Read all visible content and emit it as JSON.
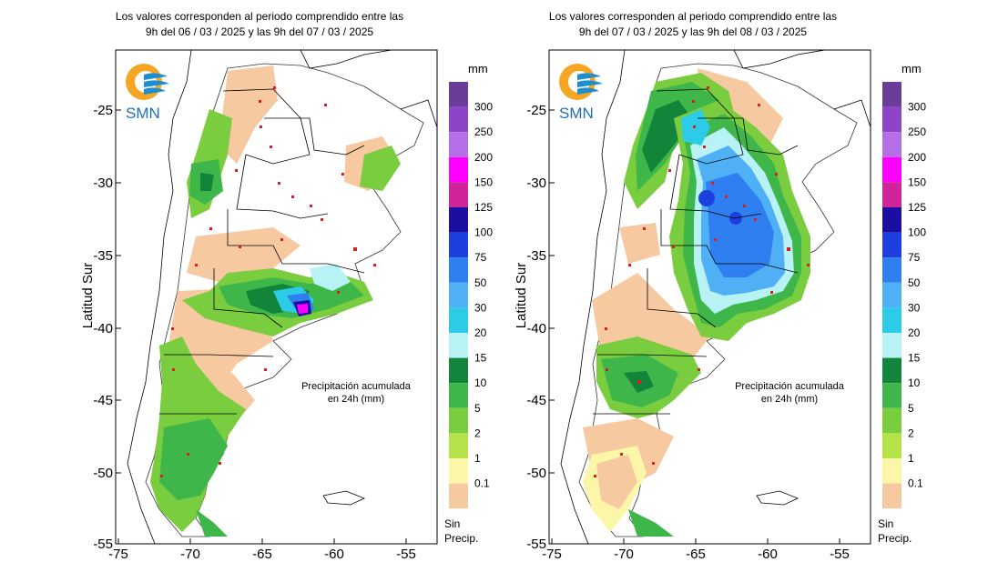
{
  "maps": [
    {
      "title_line1": "Los valores corresponden al periodo comprendido entre las",
      "title_line2": "9h del 06 / 03 / 2025  y las 9h del 07 / 03 / 2025",
      "logo_text": "SMN",
      "annotation_line1": "Precipitación acumulada",
      "annotation_line2": "en 24h (mm)"
    },
    {
      "title_line1": "Los valores corresponden al periodo comprendido entre las",
      "title_line2": "9h del 07 / 03 / 2025  y las 9h del 08 / 03 / 2025",
      "logo_text": "SMN",
      "annotation_line1": "Precipitación acumulada",
      "annotation_line2": "en 24h (mm)"
    }
  ],
  "axes": {
    "ylabel": "Latitud Sur",
    "x_ticks": [
      "-75",
      "-70",
      "-65",
      "-60",
      "-55"
    ],
    "y_ticks": [
      "-25",
      "-30",
      "-35",
      "-40",
      "-45",
      "-50",
      "-55"
    ]
  },
  "legend": {
    "unit": "mm",
    "no_precip_line1": "Sin",
    "no_precip_line2": "Precip.",
    "entries": [
      {
        "label": "300",
        "color": "#6a3d9a"
      },
      {
        "label": "250",
        "color": "#8e44c8"
      },
      {
        "label": "200",
        "color": "#b46ee6"
      },
      {
        "label": "150",
        "color": "#ff00ff"
      },
      {
        "label": "125",
        "color": "#d0249a"
      },
      {
        "label": "100",
        "color": "#1a0fa0"
      },
      {
        "label": "75",
        "color": "#1e3fe0"
      },
      {
        "label": "50",
        "color": "#2f7ff0"
      },
      {
        "label": "30",
        "color": "#4fb0f5"
      },
      {
        "label": "20",
        "color": "#2ccbe8"
      },
      {
        "label": "15",
        "color": "#b8f2f5"
      },
      {
        "label": "10",
        "color": "#13853a"
      },
      {
        "label": "5",
        "color": "#3fb64a"
      },
      {
        "label": "2",
        "color": "#7acd3e"
      },
      {
        "label": "1",
        "color": "#b6e24a"
      },
      {
        "label": "0.1",
        "color": "#fbf6a8"
      },
      {
        "label": "",
        "color": "#f6c9a0"
      }
    ]
  }
}
